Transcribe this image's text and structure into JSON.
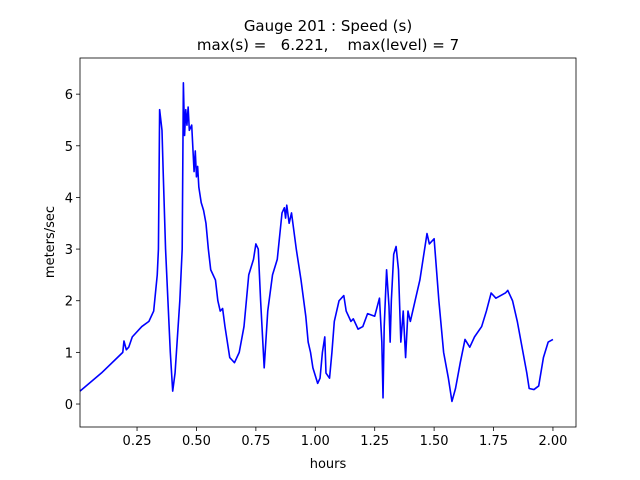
{
  "chart_data": {
    "type": "line",
    "title": "Gauge 201 : Speed (s)",
    "subtitle": "max(s) =   6.221,    max(level) = 7",
    "x_label": "hours",
    "y_label": "meters/sec",
    "color": "#0000ff",
    "xlim": [
      0.01,
      2.097
    ],
    "ylim": [
      -0.445,
      6.7
    ],
    "xticks": [
      0.25,
      {
        "value": 0.5,
        "label": "0.50"
      },
      0.75,
      {
        "value": 1.0,
        "label": "1.00"
      },
      1.25,
      {
        "value": 1.5,
        "label": "1.50"
      },
      1.75,
      {
        "value": 2.0,
        "label": "2.00"
      }
    ],
    "yticks": [
      0,
      1,
      2,
      3,
      4,
      5,
      6
    ],
    "x": [
      0.01,
      0.1,
      0.19,
      0.195,
      0.205,
      0.215,
      0.23,
      0.27,
      0.3,
      0.32,
      0.335,
      0.34,
      0.345,
      0.355,
      0.36,
      0.37,
      0.38,
      0.39,
      0.4,
      0.41,
      0.43,
      0.44,
      0.445,
      0.45,
      0.455,
      0.46,
      0.465,
      0.47,
      0.48,
      0.49,
      0.495,
      0.5,
      0.505,
      0.51,
      0.52,
      0.53,
      0.54,
      0.55,
      0.56,
      0.58,
      0.59,
      0.6,
      0.61,
      0.62,
      0.64,
      0.65,
      0.66,
      0.68,
      0.7,
      0.72,
      0.74,
      0.75,
      0.76,
      0.77,
      0.785,
      0.8,
      0.82,
      0.84,
      0.86,
      0.87,
      0.875,
      0.88,
      0.89,
      0.9,
      0.92,
      0.94,
      0.96,
      0.97,
      0.98,
      0.99,
      1.0,
      1.01,
      1.02,
      1.03,
      1.04,
      1.045,
      1.06,
      1.07,
      1.08,
      1.1,
      1.12,
      1.13,
      1.15,
      1.16,
      1.18,
      1.2,
      1.22,
      1.25,
      1.27,
      1.28,
      1.285,
      1.29,
      1.3,
      1.31,
      1.315,
      1.32,
      1.33,
      1.34,
      1.35,
      1.36,
      1.37,
      1.38,
      1.39,
      1.4,
      1.42,
      1.44,
      1.46,
      1.47,
      1.48,
      1.5,
      1.52,
      1.54,
      1.56,
      1.575,
      1.59,
      1.61,
      1.63,
      1.65,
      1.67,
      1.7,
      1.72,
      1.74,
      1.76,
      1.78,
      1.8,
      1.81,
      1.83,
      1.85,
      1.87,
      1.89,
      1.9,
      1.92,
      1.94,
      1.96,
      1.98,
      2.0
    ],
    "values": [
      0.25,
      0.6,
      1.0,
      1.22,
      1.05,
      1.1,
      1.3,
      1.5,
      1.6,
      1.8,
      2.5,
      3.0,
      5.7,
      5.3,
      4.5,
      3.0,
      2.0,
      1.0,
      0.25,
      0.6,
      2.0,
      3.0,
      6.22,
      5.2,
      5.7,
      5.4,
      5.75,
      5.3,
      5.4,
      4.5,
      4.9,
      4.4,
      4.6,
      4.2,
      3.9,
      3.75,
      3.5,
      3.0,
      2.6,
      2.4,
      2.0,
      1.8,
      1.85,
      1.5,
      0.9,
      0.85,
      0.8,
      1.0,
      1.5,
      2.5,
      2.8,
      3.1,
      3.0,
      2.0,
      0.7,
      1.8,
      2.5,
      2.8,
      3.7,
      3.8,
      3.6,
      3.85,
      3.5,
      3.7,
      3.0,
      2.4,
      1.7,
      1.2,
      1.0,
      0.7,
      0.55,
      0.4,
      0.5,
      1.0,
      1.3,
      0.6,
      0.5,
      1.0,
      1.6,
      2.0,
      2.1,
      1.8,
      1.6,
      1.65,
      1.45,
      1.5,
      1.75,
      1.7,
      2.05,
      1.2,
      0.12,
      1.5,
      2.6,
      1.9,
      1.2,
      2.0,
      2.9,
      3.05,
      2.6,
      1.2,
      1.8,
      0.9,
      1.8,
      1.6,
      2.0,
      2.4,
      3.0,
      3.3,
      3.1,
      3.2,
      2.0,
      1.0,
      0.5,
      0.05,
      0.3,
      0.8,
      1.25,
      1.1,
      1.3,
      1.5,
      1.8,
      2.15,
      2.05,
      2.1,
      2.15,
      2.2,
      2.0,
      1.6,
      1.1,
      0.6,
      0.3,
      0.28,
      0.35,
      0.9,
      1.2,
      1.25
    ]
  }
}
